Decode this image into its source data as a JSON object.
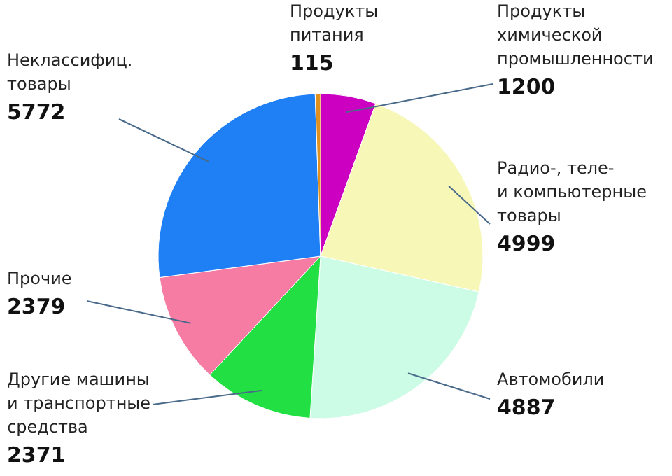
{
  "chart_data": {
    "type": "pie",
    "categories": [
      "Продукты\nхимической\nпромышленности",
      "Радио-, теле-\nи компьютерные\nтовары",
      "Автомобили",
      "Другие машины\nи транспортные\nсредства",
      "Прочие",
      "Неклассифиц.\nтовары",
      "Продукты\nпитания"
    ],
    "values": [
      1200,
      4999,
      4887,
      2371,
      2379,
      5772,
      115
    ],
    "colors": [
      "#cc00c0",
      "#f7f7b8",
      "#ccfbe6",
      "#22e044",
      "#f77ca4",
      "#1f7ff5",
      "#e0901e"
    ],
    "data_labels": true
  }
}
